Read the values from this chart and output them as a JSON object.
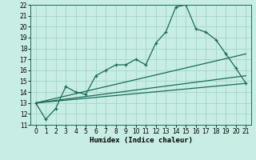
{
  "xlabel": "Humidex (Indice chaleur)",
  "bg_color": "#c8ede4",
  "grid_color": "#a8d8cc",
  "line_color": "#1a6b5a",
  "xlim": [
    -0.5,
    21.5
  ],
  "ylim": [
    11,
    22
  ],
  "xticks": [
    0,
    1,
    2,
    3,
    4,
    5,
    6,
    7,
    8,
    9,
    10,
    11,
    12,
    13,
    14,
    15,
    16,
    17,
    18,
    19,
    20,
    21
  ],
  "yticks": [
    11,
    12,
    13,
    14,
    15,
    16,
    17,
    18,
    19,
    20,
    21,
    22
  ],
  "series_main_x": [
    0,
    1,
    2,
    3,
    4,
    5,
    6,
    7,
    8,
    9,
    10,
    11,
    12,
    13,
    14,
    15,
    16,
    17,
    18,
    19,
    20,
    21
  ],
  "series_main_y": [
    13,
    11.5,
    12.5,
    14.5,
    14.0,
    13.8,
    15.5,
    16.0,
    16.5,
    16.5,
    17.0,
    16.5,
    18.5,
    19.5,
    21.8,
    22.0,
    19.8,
    19.5,
    18.8,
    17.5,
    16.2,
    14.8
  ],
  "line1_x": [
    0,
    21
  ],
  "line1_y": [
    13.0,
    14.8
  ],
  "line2_x": [
    0,
    21
  ],
  "line2_y": [
    13.0,
    15.5
  ],
  "line3_x": [
    0,
    21
  ],
  "line3_y": [
    13.0,
    17.5
  ],
  "tick_fontsize": 5.5,
  "xlabel_fontsize": 6.5
}
